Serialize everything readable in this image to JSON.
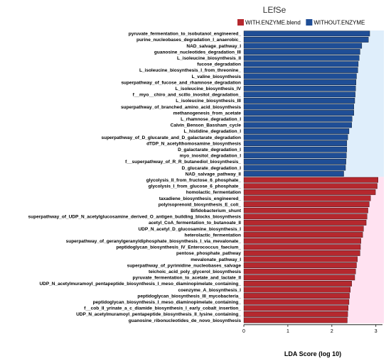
{
  "chart_data": {
    "type": "bar",
    "orientation": "horizontal",
    "title": "LEfSe",
    "xlabel": "LDA Score (log 10)",
    "ylabel": "",
    "xlim": [
      0,
      3.15
    ],
    "xticks": [
      0,
      1,
      2,
      3
    ],
    "grid": false,
    "legend_position": "top-right",
    "colors": {
      "WITH.ENZYME.blend": "#b5282e",
      "WITHOUT.ENZYME": "#1f4e96",
      "with_band": "#ffe2f1",
      "without_band": "#dfeefb"
    },
    "legend": [
      {
        "name": "WITH.ENZYME.blend",
        "color": "#b5282e"
      },
      {
        "name": "WITHOUT.ENZYME",
        "color": "#1f4e96"
      }
    ],
    "categories": [
      "pyruvate_fermentation_to_isobutanol_engineered_",
      "purine_nucleobases_degradation_I_anaerobic_",
      "NAD_salvage_pathway_I",
      "guanosine_nucleotides_degradation_III",
      "L_isoleucine_biosynthesis_II",
      "fucose_degradation",
      "L_isoleucine_biosynthesis_I_from_threonine_",
      "L_valine_biosynthesis",
      "superpathway_of_fucose_and_rhamnose_degradation",
      "L_isoleucine_biosynthesis_IV",
      "f__myo__chiro_and_scillo_inositol_degradation_",
      "L_isoleucine_biosynthesis_III",
      "superpathway_of_branched_amino_acid_biosynthesis",
      "methanogenesis_from_acetate",
      "L_rhamnose_degradation_I",
      "Calvin_Benson_Bassham_cycle",
      "L_histidine_degradation_I",
      "superpathway_of_D_glucarate_and_D_galactarate_degradation",
      "dTDP_N_acetylthomosamine_biosynthesis",
      "D_galactarate_degradation_I",
      "myo_inositol_degradation_I",
      "f__superpathway_of_R_R_butanediol_biosynthesis_",
      "D_glucarate_degradation_I",
      "NAD_salvage_pathway_II",
      "glycolysis_II_from_fructose_6_phosphate_",
      "glycolysis_I_from_glucose_6_phosphate_",
      "homolactic_fermentation",
      "taxadiene_biosynthesis_engineered_",
      "polyisoprenoid_biosynthesis_E_coli_",
      "Bifidobacterium_shunt",
      "superpathway_of_UDP_N_acetylglucosamine_derived_O_antigen_building_blocks_biosynthesis",
      "acetyl_CoA_fermentation_to_butanoate_II",
      "UDP_N_acetyl_D_glucosamine_biosynthesis_I",
      "heterolactic_fermentation",
      "superpathway_of_geranylgeranyldiphosphate_biosynthesis_I_via_mevalonate_",
      "peptidoglycan_biosynthesis_IV_Enterococcus_faecium_",
      "pentose_phosphate_pathway",
      "mevalonate_pathway_I",
      "superpathway_of_pyrimidine_nucleobases_salvage",
      "teichoic_acid_poly_glycerol_biosynthesis",
      "pyruvate_fermentation_to_acetate_and_lactate_II",
      "UDP_N_acetylmuramoyl_pentapeptide_biosynthesis_I_meso_diaminopimelate_containing_",
      "coenzyme_A_biosynthesis_I",
      "peptidoglycan_biosynthesis_III_mycobacteria_",
      "peptidoglycan_biosynthesis_I_meso_diaminopimelate_containing_",
      "f__cob_II_yrinate_a_c_diamide_biosynthesis_I_early_cobalt_insertion_",
      "UDP_N_acetylmuramoyl_pentapeptide_biosynthesis_II_lysine_containing_",
      "guanosine_ribonucleotides_de_novo_biosynthesis"
    ],
    "values": [
      2.86,
      2.83,
      2.68,
      2.64,
      2.62,
      2.6,
      2.59,
      2.56,
      2.55,
      2.54,
      2.53,
      2.52,
      2.5,
      2.5,
      2.46,
      2.45,
      2.39,
      2.36,
      2.34,
      2.34,
      2.33,
      2.32,
      2.31,
      2.27,
      3.05,
      3.03,
      2.99,
      2.88,
      2.85,
      2.82,
      2.8,
      2.78,
      2.72,
      2.7,
      2.66,
      2.65,
      2.64,
      2.58,
      2.56,
      2.54,
      2.52,
      2.45,
      2.42,
      2.4,
      2.39,
      2.37,
      2.36,
      2.35
    ],
    "groups": [
      "WITHOUT.ENZYME",
      "WITHOUT.ENZYME",
      "WITHOUT.ENZYME",
      "WITHOUT.ENZYME",
      "WITHOUT.ENZYME",
      "WITHOUT.ENZYME",
      "WITHOUT.ENZYME",
      "WITHOUT.ENZYME",
      "WITHOUT.ENZYME",
      "WITHOUT.ENZYME",
      "WITHOUT.ENZYME",
      "WITHOUT.ENZYME",
      "WITHOUT.ENZYME",
      "WITHOUT.ENZYME",
      "WITHOUT.ENZYME",
      "WITHOUT.ENZYME",
      "WITHOUT.ENZYME",
      "WITHOUT.ENZYME",
      "WITHOUT.ENZYME",
      "WITHOUT.ENZYME",
      "WITHOUT.ENZYME",
      "WITHOUT.ENZYME",
      "WITHOUT.ENZYME",
      "WITHOUT.ENZYME",
      "WITH.ENZYME.blend",
      "WITH.ENZYME.blend",
      "WITH.ENZYME.blend",
      "WITH.ENZYME.blend",
      "WITH.ENZYME.blend",
      "WITH.ENZYME.blend",
      "WITH.ENZYME.blend",
      "WITH.ENZYME.blend",
      "WITH.ENZYME.blend",
      "WITH.ENZYME.blend",
      "WITH.ENZYME.blend",
      "WITH.ENZYME.blend",
      "WITH.ENZYME.blend",
      "WITH.ENZYME.blend",
      "WITH.ENZYME.blend",
      "WITH.ENZYME.blend",
      "WITH.ENZYME.blend",
      "WITH.ENZYME.blend",
      "WITH.ENZYME.blend",
      "WITH.ENZYME.blend",
      "WITH.ENZYME.blend",
      "WITH.ENZYME.blend",
      "WITH.ENZYME.blend",
      "WITH.ENZYME.blend"
    ]
  }
}
